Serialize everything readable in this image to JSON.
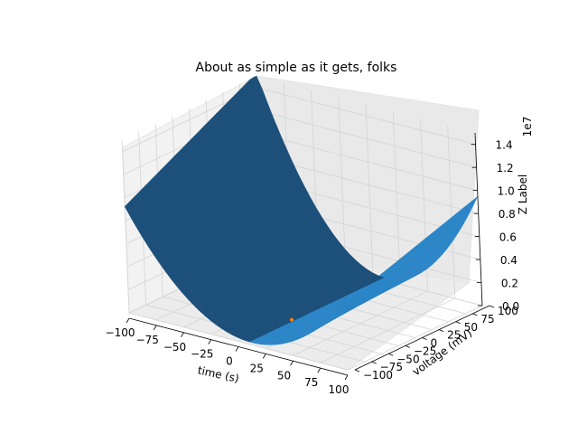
{
  "chart_data": {
    "type": "surface3d",
    "title": "About as simple as it gets, folks",
    "xlabel": "time (s)",
    "ylabel": "voltage (mV)",
    "zlabel": "Z Label",
    "z_offset_label": "1e7",
    "x_ticks": [
      "−100",
      "−75",
      "−50",
      "−25",
      "0",
      "25",
      "50",
      "75",
      "100"
    ],
    "y_ticks": [
      "−100",
      "−75",
      "−50",
      "−25",
      "0",
      "25",
      "50",
      "75",
      "100"
    ],
    "z_ticks": [
      "0.0",
      "0.2",
      "0.4",
      "0.6",
      "0.8",
      "1.0",
      "1.2",
      "1.4"
    ],
    "xlim": [
      -100,
      100
    ],
    "ylim": [
      -100,
      100
    ],
    "zlim": [
      0,
      1.5
    ],
    "surface_color": "#1f77b4",
    "marker_color": "#ff7f0e",
    "grid": true
  }
}
